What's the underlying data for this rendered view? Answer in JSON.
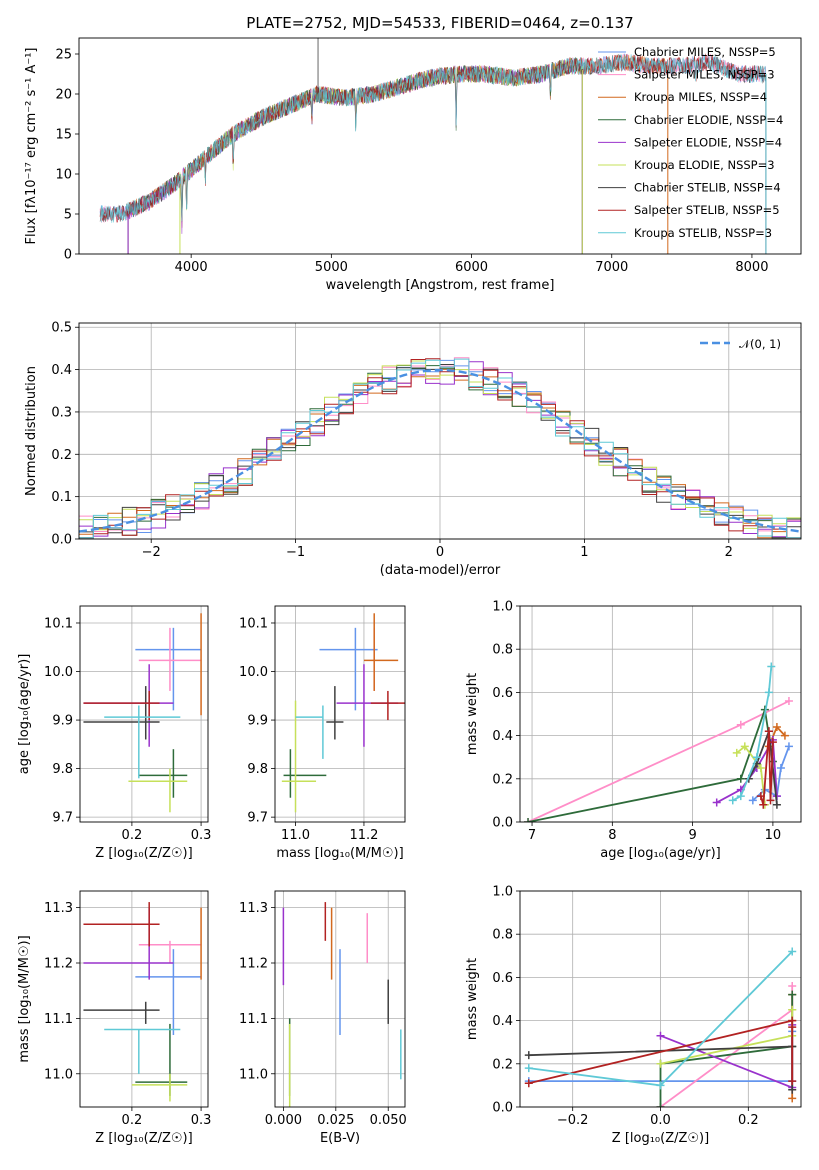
{
  "chart_data": [
    {
      "id": "spectrum",
      "type": "line",
      "title": "PLATE=2752, MJD=54533, FIBERID=0464, z=0.137",
      "xlabel": "wavelength [Angstrom, rest frame]",
      "ylabel": "Flux [fλ10⁻¹⁷ erg cm⁻² s⁻¹ A⁻¹]",
      "xlim": [
        3200,
        8350
      ],
      "ylim": [
        0,
        27
      ],
      "xticks": [
        4000,
        5000,
        6000,
        7000,
        8000
      ],
      "yticks": [
        0,
        5,
        10,
        15,
        20,
        25
      ],
      "legend_position": "top-right",
      "continuum": {
        "x": [
          3350,
          3500,
          3700,
          3900,
          4000,
          4300,
          4500,
          4700,
          4900,
          5100,
          5300,
          5500,
          5700,
          5900,
          6100,
          6300,
          6500,
          6700,
          6900,
          7100,
          7300,
          7500,
          7700,
          7900,
          8100
        ],
        "y": [
          5,
          5,
          6.5,
          9,
          10.5,
          15,
          17,
          18.5,
          20,
          19.5,
          20,
          21,
          22,
          22.5,
          22.5,
          22,
          22.5,
          23.5,
          23.5,
          24,
          23.5,
          23.5,
          24,
          22.5,
          22.5
        ]
      },
      "series": [
        {
          "name": "Chabrier MILES, N_SSP=5",
          "color": "#6495ED",
          "range": [
            3350,
            8100
          ]
        },
        {
          "name": "Salpeter MILES, N_SSP=3",
          "color": "#FF8EC8",
          "range": [
            3350,
            8100
          ]
        },
        {
          "name": "Kroupa MILES, N_SSP=4",
          "color": "#D2691E",
          "range": [
            3550,
            7400
          ]
        },
        {
          "name": "Chabrier ELODIE, N_SSP=4",
          "color": "#2E6B3A",
          "range": [
            3550,
            6790
          ]
        },
        {
          "name": "Salpeter ELODIE, N_SSP=4",
          "color": "#9932CC",
          "range": [
            3550,
            6790
          ]
        },
        {
          "name": "Kroupa ELODIE, N_SSP=3",
          "color": "#C6E05A",
          "range": [
            3920,
            6790
          ]
        },
        {
          "name": "Chabrier STELIB, N_SSP=4",
          "color": "#404040",
          "range": [
            3350,
            8100
          ]
        },
        {
          "name": "Salpeter STELIB, N_SSP=5",
          "color": "#B22222",
          "range": [
            3350,
            8100
          ]
        },
        {
          "name": "Kroupa STELIB, N_SSP=3",
          "color": "#5FC9D6",
          "range": [
            3350,
            8100
          ]
        }
      ]
    },
    {
      "id": "residuals",
      "type": "step-histogram",
      "xlabel": "(data-model)/error",
      "ylabel": "Normed distribution",
      "xlim": [
        -2.5,
        2.5
      ],
      "ylim": [
        0,
        0.51
      ],
      "xticks": [
        -2,
        -1,
        0,
        1,
        2
      ],
      "yticks": [
        0.0,
        0.1,
        0.2,
        0.3,
        0.4,
        0.5
      ],
      "legend_position": "top-right",
      "reference": {
        "name": "𝒩(0, 1)",
        "color": "#4A90E2"
      },
      "bins": [
        -2.5,
        -2.4,
        -2.3,
        -2.2,
        -2.1,
        -2.0,
        -1.9,
        -1.8,
        -1.7,
        -1.6,
        -1.5,
        -1.4,
        -1.3,
        -1.2,
        -1.1,
        -1.0,
        -0.9,
        -0.8,
        -0.7,
        -0.6,
        -0.5,
        -0.4,
        -0.3,
        -0.2,
        -0.1,
        0.0,
        0.1,
        0.2,
        0.3,
        0.4,
        0.5,
        0.6,
        0.7,
        0.8,
        0.9,
        1.0,
        1.1,
        1.2,
        1.3,
        1.4,
        1.5,
        1.6,
        1.7,
        1.8,
        1.9,
        2.0,
        2.1,
        2.2,
        2.3,
        2.4,
        2.5
      ]
    },
    {
      "id": "age-vs-Z",
      "type": "errorbar",
      "xlabel": "Z [log₁₀(Z/Z☉)]",
      "ylabel": "age  [log₁₀(age/yr)]",
      "xlim": [
        0.125,
        0.31
      ],
      "ylim": [
        9.69,
        10.135
      ],
      "xticks": [
        0.2,
        0.3
      ],
      "yticks": [
        9.7,
        9.8,
        9.9,
        10.0,
        10.1
      ],
      "points": [
        {
          "series": 0,
          "x": 0.26,
          "y": 10.045,
          "xerr": [
            0.205,
            0.3
          ],
          "yerr": [
            9.92,
            10.09
          ]
        },
        {
          "series": 1,
          "x": 0.255,
          "y": 10.023,
          "xerr": [
            0.21,
            0.3
          ],
          "yerr": [
            9.96,
            10.09
          ]
        },
        {
          "series": 2,
          "x": 0.3,
          "y": 10.02,
          "xerr": [
            0.3,
            0.3
          ],
          "yerr": [
            9.91,
            10.12
          ]
        },
        {
          "series": 3,
          "x": 0.26,
          "y": 9.786,
          "xerr": [
            0.21,
            0.28
          ],
          "yerr": [
            9.74,
            9.84
          ]
        },
        {
          "series": 4,
          "x": 0.225,
          "y": 9.935,
          "xerr": [
            0.13,
            0.26
          ],
          "yerr": [
            9.845,
            10.015
          ]
        },
        {
          "series": 5,
          "x": 0.255,
          "y": 9.774,
          "xerr": [
            0.195,
            0.28
          ],
          "yerr": [
            9.71,
            9.8
          ]
        },
        {
          "series": 6,
          "x": 0.22,
          "y": 9.896,
          "xerr": [
            0.13,
            0.24
          ],
          "yerr": [
            9.86,
            9.97
          ]
        },
        {
          "series": 7,
          "x": 0.225,
          "y": 9.935,
          "xerr": [
            0.13,
            0.24
          ],
          "yerr": [
            9.9,
            9.96
          ]
        },
        {
          "series": 8,
          "x": 0.21,
          "y": 9.906,
          "xerr": [
            0.16,
            0.27
          ],
          "yerr": [
            9.78,
            9.93
          ]
        }
      ]
    },
    {
      "id": "age-vs-mass",
      "type": "errorbar",
      "xlabel": "mass [log₁₀(M/M☉)]",
      "ylabel": "",
      "xlim": [
        10.94,
        11.32
      ],
      "ylim": [
        9.69,
        10.135
      ],
      "xticks": [
        11.0,
        11.2
      ],
      "yticks": [
        9.7,
        9.8,
        9.9,
        10.0,
        10.1
      ],
      "points": [
        {
          "series": 0,
          "x": 11.175,
          "y": 10.045,
          "xerr": [
            11.07,
            11.24
          ],
          "yerr": [
            9.92,
            10.09
          ]
        },
        {
          "series": 1,
          "x": 11.23,
          "y": 10.023,
          "xerr": [
            11.23,
            11.23
          ],
          "yerr": [
            9.96,
            10.09
          ]
        },
        {
          "series": 2,
          "x": 11.23,
          "y": 10.023,
          "xerr": [
            11.2,
            11.3
          ],
          "yerr": [
            9.96,
            10.12
          ]
        },
        {
          "series": 3,
          "x": 10.985,
          "y": 9.786,
          "xerr": [
            10.965,
            11.09
          ],
          "yerr": [
            9.74,
            9.84
          ]
        },
        {
          "series": 4,
          "x": 11.2,
          "y": 9.935,
          "xerr": [
            11.12,
            11.3
          ],
          "yerr": [
            9.845,
            10.015
          ]
        },
        {
          "series": 5,
          "x": 11.0,
          "y": 9.774,
          "xerr": [
            10.96,
            11.06
          ],
          "yerr": [
            9.71,
            9.94
          ]
        },
        {
          "series": 6,
          "x": 11.115,
          "y": 9.896,
          "xerr": [
            11.09,
            11.14
          ],
          "yerr": [
            9.86,
            9.97
          ]
        },
        {
          "series": 7,
          "x": 11.27,
          "y": 9.935,
          "xerr": [
            11.22,
            11.32
          ],
          "yerr": [
            9.9,
            9.96
          ]
        },
        {
          "series": 8,
          "x": 11.08,
          "y": 9.906,
          "xerr": [
            11.0,
            11.08
          ],
          "yerr": [
            9.82,
            9.93
          ]
        }
      ]
    },
    {
      "id": "massweight-vs-age",
      "type": "line",
      "xlabel": "age  [log₁₀(age/yr)]",
      "ylabel": "mass weight",
      "xlim": [
        6.85,
        10.35
      ],
      "ylim": [
        0,
        1.0
      ],
      "xticks": [
        7,
        8,
        9,
        10
      ],
      "yticks": [
        0.0,
        0.2,
        0.4,
        0.6,
        0.8,
        1.0
      ],
      "series_points": [
        {
          "series": 0,
          "x": [
            9.75,
            9.9,
            10.05,
            10.1,
            10.2
          ],
          "y": [
            0.1,
            0.15,
            0.12,
            0.25,
            0.35
          ]
        },
        {
          "series": 1,
          "x": [
            6.95,
            9.6,
            10.2
          ],
          "y": [
            0.0,
            0.45,
            0.56
          ]
        },
        {
          "series": 2,
          "x": [
            9.95,
            10.05,
            10.15
          ],
          "y": [
            0.35,
            0.44,
            0.4
          ]
        },
        {
          "series": 3,
          "x": [
            6.95,
            9.6,
            9.9,
            10.0
          ],
          "y": [
            0.0,
            0.2,
            0.52,
            0.28
          ]
        },
        {
          "series": 4,
          "x": [
            9.3,
            9.6,
            9.8,
            10.0,
            10.05
          ],
          "y": [
            0.09,
            0.15,
            0.25,
            0.38,
            0.12
          ]
        },
        {
          "series": 5,
          "x": [
            9.55,
            9.65,
            9.85,
            9.9
          ],
          "y": [
            0.32,
            0.35,
            0.25,
            0.08
          ]
        },
        {
          "series": 6,
          "x": [
            9.7,
            9.8,
            9.95,
            10.05
          ],
          "y": [
            0.2,
            0.27,
            0.42,
            0.08
          ]
        },
        {
          "series": 7,
          "x": [
            9.85,
            9.88,
            9.95,
            9.97,
            10.0
          ],
          "y": [
            0.12,
            0.08,
            0.42,
            0.1,
            0.37
          ]
        },
        {
          "series": 8,
          "x": [
            9.5,
            9.6,
            9.8,
            9.95,
            9.98
          ],
          "y": [
            0.1,
            0.12,
            0.3,
            0.6,
            0.72
          ]
        }
      ]
    },
    {
      "id": "mass-vs-Z",
      "type": "errorbar",
      "xlabel": "Z [log₁₀(Z/Z☉)]",
      "ylabel": "mass [log₁₀(M/M☉)]",
      "xlim": [
        0.125,
        0.31
      ],
      "ylim": [
        10.94,
        11.33
      ],
      "xticks": [
        0.2,
        0.3
      ],
      "yticks": [
        11.0,
        11.1,
        11.2,
        11.3
      ],
      "points": [
        {
          "series": 0,
          "x": 0.26,
          "y": 11.175,
          "xerr": [
            0.205,
            0.3
          ],
          "yerr": [
            11.07,
            11.225
          ]
        },
        {
          "series": 1,
          "x": 0.255,
          "y": 11.233,
          "xerr": [
            0.21,
            0.3
          ],
          "yerr": [
            11.2,
            11.24
          ]
        },
        {
          "series": 2,
          "x": 0.3,
          "y": 11.2,
          "xerr": [
            0.3,
            0.3
          ],
          "yerr": [
            11.17,
            11.3
          ]
        },
        {
          "series": 3,
          "x": 0.255,
          "y": 10.985,
          "xerr": [
            0.205,
            0.28
          ],
          "yerr": [
            10.96,
            11.09
          ]
        },
        {
          "series": 4,
          "x": 0.225,
          "y": 11.2,
          "xerr": [
            0.13,
            0.26
          ],
          "yerr": [
            11.17,
            11.3
          ]
        },
        {
          "series": 5,
          "x": 0.255,
          "y": 10.98,
          "xerr": [
            0.2,
            0.28
          ],
          "yerr": [
            10.95,
            11.0
          ]
        },
        {
          "series": 6,
          "x": 0.22,
          "y": 11.115,
          "xerr": [
            0.13,
            0.24
          ],
          "yerr": [
            11.09,
            11.13
          ]
        },
        {
          "series": 7,
          "x": 0.225,
          "y": 11.27,
          "xerr": [
            0.13,
            0.24
          ],
          "yerr": [
            11.23,
            11.31
          ]
        },
        {
          "series": 8,
          "x": 0.21,
          "y": 11.08,
          "xerr": [
            0.16,
            0.27
          ],
          "yerr": [
            11.0,
            11.08
          ]
        }
      ]
    },
    {
      "id": "mass-vs-EBV",
      "type": "errorbar",
      "xlabel": "E(B-V)",
      "ylabel": "",
      "xlim": [
        -0.004,
        0.058
      ],
      "ylim": [
        10.94,
        11.33
      ],
      "xticks": [
        0.0,
        0.025,
        0.05
      ],
      "xticklabels": [
        "0.000",
        "0.025",
        "0.050"
      ],
      "yticks": [
        11.0,
        11.1,
        11.2,
        11.3
      ],
      "points": [
        {
          "series": 0,
          "x": 0.027,
          "y": 11.175,
          "xerr": [
            0.027,
            0.027
          ],
          "yerr": [
            11.07,
            11.225
          ]
        },
        {
          "series": 1,
          "x": 0.04,
          "y": 11.233,
          "xerr": [
            0.04,
            0.04
          ],
          "yerr": [
            11.2,
            11.29
          ]
        },
        {
          "series": 2,
          "x": 0.023,
          "y": 11.2,
          "xerr": [
            0.023,
            0.023
          ],
          "yerr": [
            11.17,
            11.3
          ]
        },
        {
          "series": 3,
          "x": 0.003,
          "y": 10.985,
          "xerr": [
            0.003,
            0.003
          ],
          "yerr": [
            10.96,
            11.1
          ]
        },
        {
          "series": 4,
          "x": 0.0,
          "y": 11.2,
          "xerr": [
            0.0,
            0.0
          ],
          "yerr": [
            11.16,
            11.3
          ]
        },
        {
          "series": 5,
          "x": 0.003,
          "y": 10.98,
          "xerr": [
            0.003,
            0.003
          ],
          "yerr": [
            10.94,
            11.09
          ]
        },
        {
          "series": 6,
          "x": 0.05,
          "y": 11.115,
          "xerr": [
            0.05,
            0.05
          ],
          "yerr": [
            11.09,
            11.17
          ]
        },
        {
          "series": 7,
          "x": 0.02,
          "y": 11.27,
          "xerr": [
            0.02,
            0.02
          ],
          "yerr": [
            11.24,
            11.31
          ]
        },
        {
          "series": 8,
          "x": 0.056,
          "y": 11.03,
          "xerr": [
            0.056,
            0.056
          ],
          "yerr": [
            10.99,
            11.08
          ]
        }
      ]
    },
    {
      "id": "massweight-vs-Z",
      "type": "line",
      "xlabel": "Z [log₁₀(Z/Z☉)]",
      "ylabel": "mass weight",
      "xlim": [
        -0.32,
        0.32
      ],
      "ylim": [
        0,
        1.0
      ],
      "xticks": [
        -0.2,
        0.0,
        0.2
      ],
      "yticks": [
        0.0,
        0.2,
        0.4,
        0.6,
        0.8,
        1.0
      ],
      "series_points": [
        {
          "series": 0,
          "x": [
            -0.3,
            0.3,
            0.3
          ],
          "y": [
            0.12,
            0.12,
            0.35
          ]
        },
        {
          "series": 1,
          "x": [
            0.0,
            0.3,
            0.3
          ],
          "y": [
            0.0,
            0.45,
            0.56
          ]
        },
        {
          "series": 2,
          "x": [
            0.3,
            0.3,
            0.3
          ],
          "y": [
            0.04,
            0.4,
            0.52
          ]
        },
        {
          "series": 3,
          "x": [
            0.0,
            0.0,
            0.3,
            0.3
          ],
          "y": [
            0.0,
            0.2,
            0.28,
            0.52
          ]
        },
        {
          "series": 4,
          "x": [
            0.0,
            0.3,
            0.3
          ],
          "y": [
            0.33,
            0.09,
            0.38
          ]
        },
        {
          "series": 5,
          "x": [
            0.0,
            0.3,
            0.3
          ],
          "y": [
            0.2,
            0.33,
            0.45
          ]
        },
        {
          "series": 6,
          "x": [
            -0.3,
            0.3,
            0.3
          ],
          "y": [
            0.24,
            0.28,
            0.08
          ]
        },
        {
          "series": 7,
          "x": [
            -0.3,
            0.3,
            0.3,
            0.3
          ],
          "y": [
            0.11,
            0.4,
            0.12,
            0.37
          ]
        },
        {
          "series": 8,
          "x": [
            -0.3,
            0.0,
            0.3
          ],
          "y": [
            0.18,
            0.1,
            0.72
          ]
        }
      ]
    }
  ]
}
